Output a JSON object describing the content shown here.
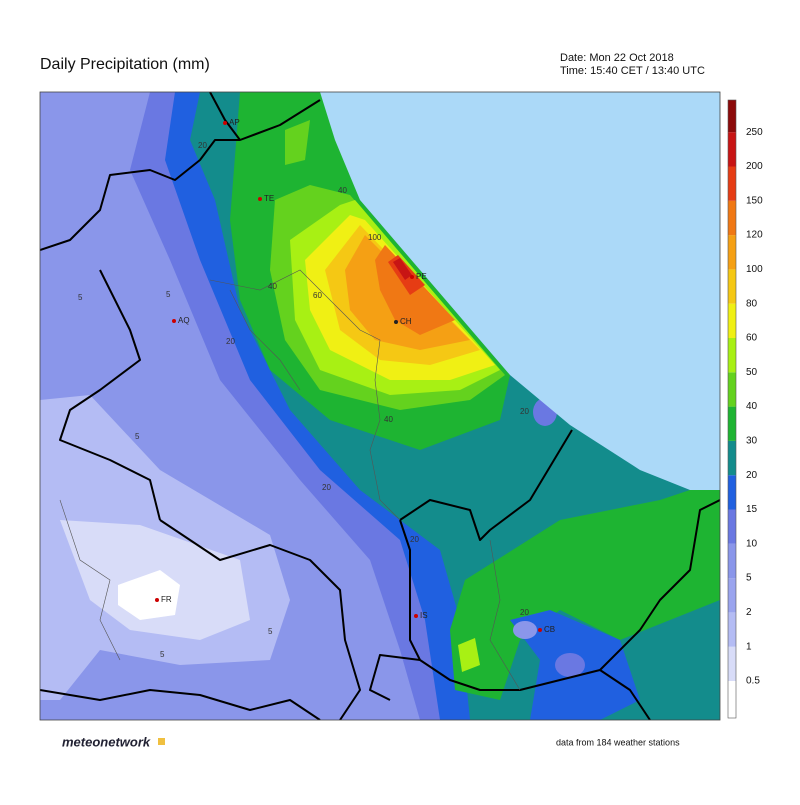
{
  "header": {
    "title": "Daily Precipitation (mm)",
    "date": "Date: Mon 22 Oct 2018",
    "time": "Time: 15:40 CET / 13:40 UTC"
  },
  "legend": {
    "levels": [
      "0.5",
      "1",
      "2",
      "5",
      "10",
      "15",
      "20",
      "30",
      "40",
      "50",
      "60",
      "80",
      "100",
      "120",
      "150",
      "200",
      "250"
    ],
    "colors": [
      "#ffffff",
      "#d8dcf8",
      "#b4bcf4",
      "#9aa4ee",
      "#8a96ea",
      "#6a78e2",
      "#2060e0",
      "#138c8c",
      "#1eb432",
      "#64d21e",
      "#a8f014",
      "#f0f014",
      "#f5c814",
      "#f5a014",
      "#f07814",
      "#e63c14",
      "#c81414",
      "#8c0a0a"
    ]
  },
  "cities": [
    "AP",
    "TE",
    "PE",
    "CH",
    "AQ",
    "FR",
    "IS",
    "CB"
  ],
  "contour_labels": [
    "20",
    "40",
    "100",
    "40",
    "60",
    "5",
    "5",
    "20",
    "5",
    "20",
    "40",
    "20",
    "20",
    "20",
    "5",
    "5"
  ],
  "footer": {
    "logo": "meteonetwork",
    "source": "data from 184 weather stations"
  }
}
